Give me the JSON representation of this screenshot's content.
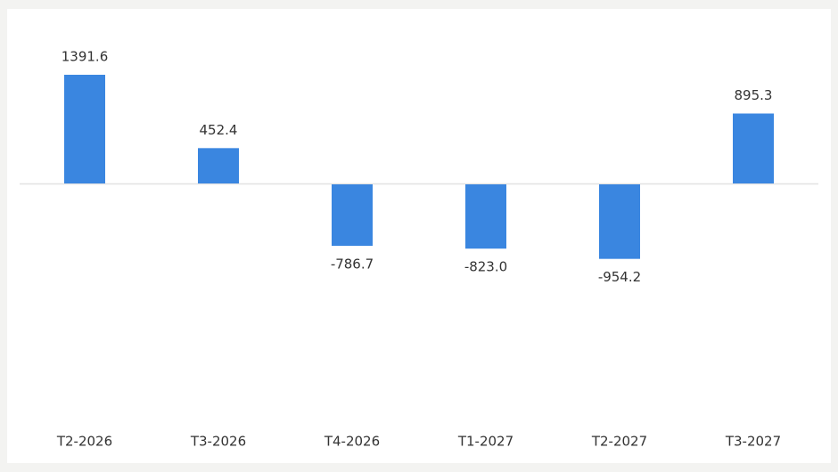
{
  "chart_data": {
    "type": "bar",
    "categories": [
      "T2-2026",
      "T3-2026",
      "T4-2026",
      "T1-2027",
      "T2-2027",
      "T3-2027"
    ],
    "values": [
      1391.6,
      452.4,
      -786.7,
      -823.0,
      -954.2,
      895.3
    ],
    "value_labels": [
      "1391.6",
      "452.4",
      "-786.7",
      "-823.0",
      "-954.2",
      "895.3"
    ],
    "color": "#3a86e0"
  }
}
